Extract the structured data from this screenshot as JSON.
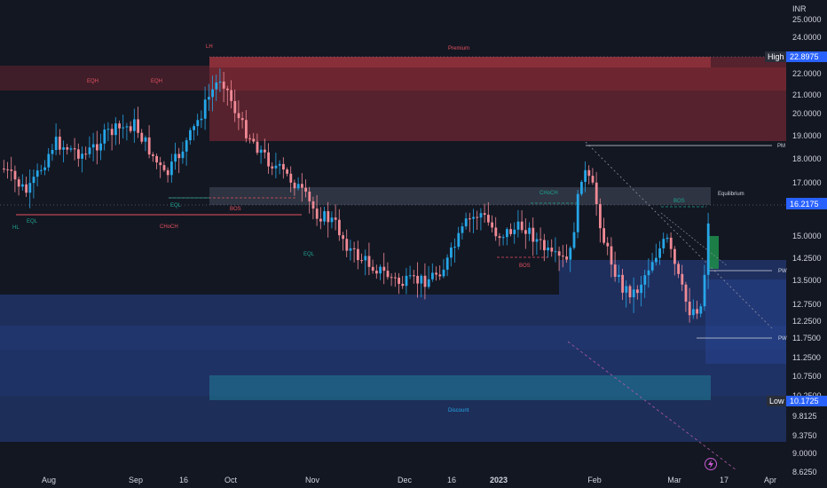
{
  "currency": "INR",
  "chart_data": {
    "type": "candlestick",
    "y_axis_ticks": [
      "25.0000",
      "24.0000",
      "22.0000",
      "21.0000",
      "20.0000",
      "19.0000",
      "18.0000",
      "17.0000",
      "15.0000",
      "14.2500",
      "13.5000",
      "12.7500",
      "12.2500",
      "11.7500",
      "11.2500",
      "10.7500",
      "10.2500",
      "9.8125",
      "9.3750",
      "9.0000",
      "8.6250"
    ],
    "x_axis_ticks": [
      "Aug",
      "Sep",
      "16",
      "Oct",
      "Nov",
      "Dec",
      "16",
      "2023",
      "Feb",
      "Mar",
      "17",
      "Apr"
    ],
    "price_pills": {
      "high_label": "High",
      "high_value": "22.8975",
      "current_value": "16.2175",
      "low_label": "Low",
      "low_value": "10.1725"
    },
    "annotations": {
      "lh": "LH",
      "premium": "Premium",
      "eqh1": "EQH",
      "eqh2": "EQH",
      "eql1": "EQL",
      "eql2": "EQL",
      "eql3": "EQL",
      "hl": "HL",
      "choch1": "CHoCH",
      "choch2": "CHoCH",
      "bos1": "BOS",
      "bos2": "BOS",
      "bos3": "BOS",
      "equilibrium": "Equilibrium",
      "discount": "Discount",
      "pm": "PM",
      "pw": "PW",
      "pw2": "PW"
    },
    "colors": {
      "background": "#131722",
      "up": "#26a6e8",
      "down": "#f08a95",
      "premium_zone": "#b3333d",
      "discount_zone": "#2c4ea8",
      "equilibrium_zone": "#4a5262",
      "green_box": "#1e8a4a",
      "label_red": "#e5515f",
      "label_teal": "#1fa592",
      "text": "#d1d4dc",
      "pill_blue": "#2962ff",
      "pill_dark": "#2a2e39"
    }
  }
}
